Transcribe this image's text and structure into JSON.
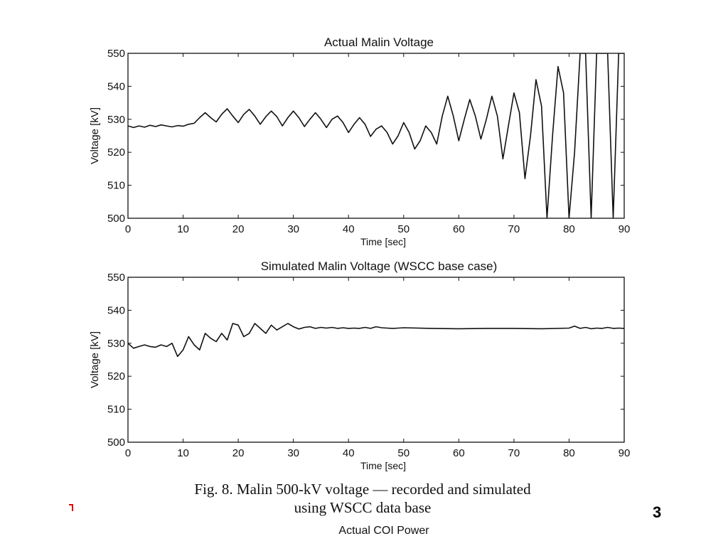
{
  "chart_data": [
    {
      "type": "line",
      "title": "Actual Malin Voltage",
      "xlabel": "Time [sec]",
      "ylabel": "Voltage [kV]",
      "xlim": [
        0,
        90
      ],
      "ylim": [
        500,
        550
      ],
      "xticks": [
        0,
        10,
        20,
        30,
        40,
        50,
        60,
        70,
        80,
        90
      ],
      "yticks": [
        500,
        510,
        520,
        530,
        540,
        550
      ],
      "grid": false,
      "series": [
        {
          "x": [
            0,
            1,
            2,
            3,
            4,
            5,
            6,
            7,
            8,
            9,
            10,
            11,
            12,
            13,
            14,
            15,
            16,
            17,
            18,
            19,
            20,
            21,
            22,
            23,
            24,
            25,
            26,
            27,
            28,
            29,
            30,
            31,
            32,
            33,
            34,
            35,
            36,
            37,
            38,
            39,
            40,
            41,
            42,
            43,
            44,
            45,
            46,
            47,
            48,
            49,
            50,
            51,
            52,
            53,
            54,
            55,
            56,
            57,
            58,
            59,
            60,
            61,
            62,
            63,
            64,
            65,
            66,
            67,
            68,
            69,
            70,
            71,
            72,
            73,
            74,
            75,
            76,
            77,
            78,
            79,
            80,
            81,
            82,
            83,
            84,
            85,
            86,
            87,
            88,
            89,
            90
          ],
          "values": [
            528,
            527.5,
            528,
            527.6,
            528.2,
            527.8,
            528.3,
            528,
            527.7,
            528.1,
            527.9,
            528.5,
            528.8,
            530.5,
            532,
            530.5,
            529.2,
            531.5,
            533.2,
            531,
            529,
            531.5,
            533,
            531,
            528.5,
            530.8,
            532.5,
            530.8,
            528,
            530.5,
            532.5,
            530.5,
            527.8,
            530,
            532,
            530,
            527.5,
            530,
            531,
            529,
            526,
            528.5,
            530.5,
            528.5,
            524.8,
            527,
            528,
            526,
            522.5,
            525,
            529,
            526,
            521,
            523.5,
            528,
            526,
            522.5,
            531,
            537,
            531,
            523.5,
            530,
            536,
            531,
            524,
            530,
            537,
            531,
            518,
            528,
            538,
            532,
            512,
            525,
            542,
            534,
            500,
            525,
            546,
            538,
            500,
            520,
            550,
            550,
            500,
            550,
            550,
            550,
            500,
            550,
            550
          ]
        }
      ]
    },
    {
      "type": "line",
      "title": "Simulated Malin Voltage (WSCC base case)",
      "xlabel": "Time [sec]",
      "ylabel": "Voltage [kV]",
      "xlim": [
        0,
        90
      ],
      "ylim": [
        500,
        550
      ],
      "xticks": [
        0,
        10,
        20,
        30,
        40,
        50,
        60,
        70,
        80,
        90
      ],
      "yticks": [
        500,
        510,
        520,
        530,
        540,
        550
      ],
      "grid": false,
      "series": [
        {
          "x": [
            0,
            1,
            2,
            3,
            4,
            5,
            6,
            7,
            8,
            9,
            10,
            11,
            12,
            13,
            14,
            15,
            16,
            17,
            18,
            19,
            20,
            21,
            22,
            23,
            24,
            25,
            26,
            27,
            28,
            29,
            30,
            31,
            32,
            33,
            34,
            35,
            36,
            37,
            38,
            39,
            40,
            41,
            42,
            43,
            44,
            45,
            46,
            47,
            48,
            49,
            50,
            55,
            60,
            65,
            70,
            75,
            80,
            81,
            82,
            83,
            84,
            85,
            86,
            87,
            88,
            89,
            90
          ],
          "values": [
            530,
            528.5,
            529,
            529.5,
            529,
            528.8,
            529.5,
            529,
            530,
            526,
            528,
            532,
            529.5,
            528,
            533,
            531.5,
            530.5,
            533,
            531,
            536,
            535.5,
            532,
            533,
            536,
            534.5,
            533,
            535.5,
            534,
            535,
            536,
            535,
            534.3,
            534.8,
            535,
            534.5,
            534.8,
            534.6,
            534.8,
            534.5,
            534.7,
            534.5,
            534.6,
            534.5,
            534.8,
            534.5,
            535,
            534.7,
            534.6,
            534.5,
            534.6,
            534.7,
            534.5,
            534.4,
            534.5,
            534.5,
            534.4,
            534.6,
            535.2,
            534.5,
            534.8,
            534.4,
            534.6,
            534.5,
            534.8,
            534.5,
            534.6,
            534.5
          ]
        }
      ]
    }
  ],
  "caption": {
    "line1": "Fig. 8. Malin 500-kV voltage — recorded and simulated",
    "line2": "using WSCC data base"
  },
  "footer_label": "Actual COI Power",
  "page_number": "3",
  "colors": {
    "line": "#111111",
    "accent_mark": "#e00000"
  }
}
